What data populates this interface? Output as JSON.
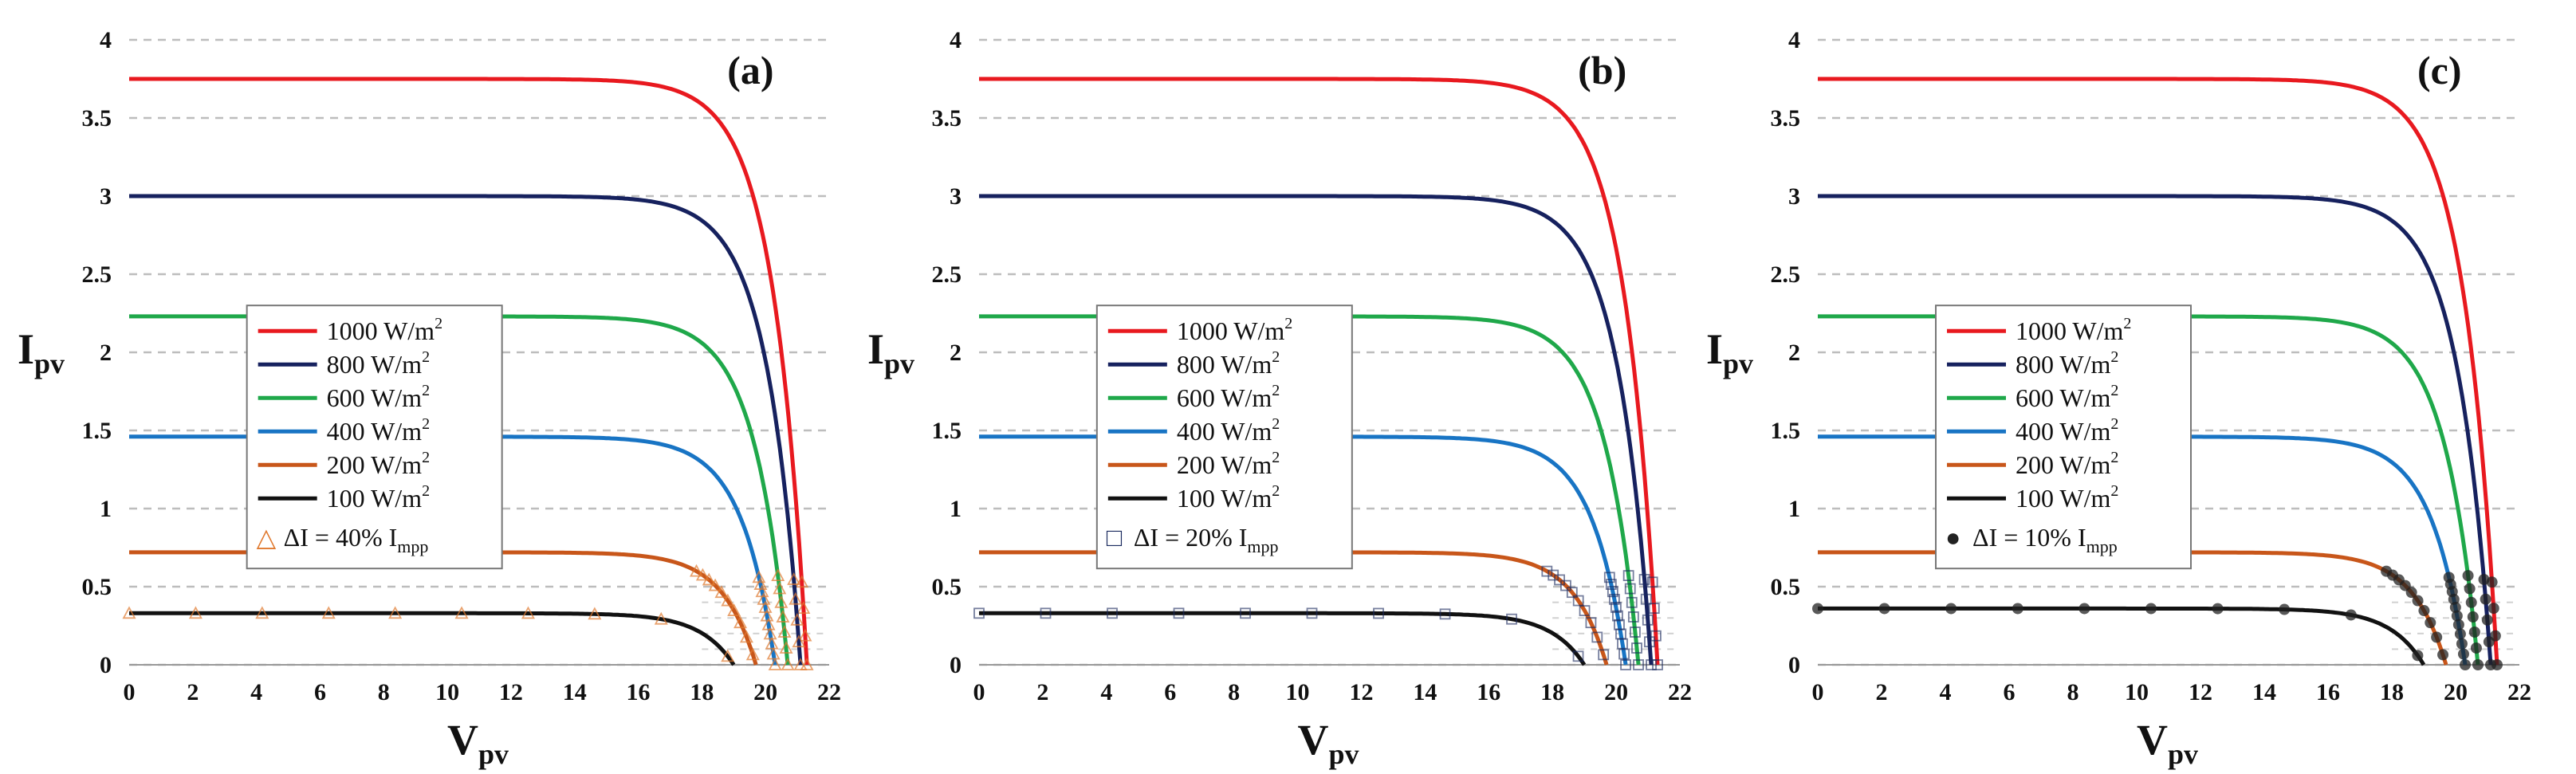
{
  "chart_data": [
    {
      "type": "line",
      "panel_label": "(a)",
      "xlabel_main": "V",
      "xlabel_sub": "pv",
      "ylabel_main": "I",
      "ylabel_sub": "pv",
      "xlim": [
        0,
        22
      ],
      "ylim": [
        0,
        4
      ],
      "xticks": [
        "0",
        "2",
        "4",
        "6",
        "8",
        "10",
        "12",
        "14",
        "16",
        "18",
        "20",
        "22"
      ],
      "yticks": [
        "0",
        "0.5",
        "1",
        "1.5",
        "2",
        "2.5",
        "3",
        "3.5",
        "4"
      ],
      "legend": {
        "entries": [
          {
            "label": "1000 W/m",
            "sup": "2"
          },
          {
            "label": "800 W/m",
            "sup": "2"
          },
          {
            "label": "600 W/m",
            "sup": "2"
          },
          {
            "label": "400 W/m",
            "sup": "2"
          },
          {
            "label": "200 W/m",
            "sup": "2"
          },
          {
            "label": "100 W/m",
            "sup": "2"
          }
        ],
        "marker_symbol": "△",
        "marker_text": "ΔI = 40% I",
        "marker_sub": "mpp"
      },
      "marker_shape": "triangle",
      "marker_color": "#e07a30",
      "series": [
        {
          "name": "1000 W/m2",
          "color": "#e8191f",
          "isc": 3.75,
          "voc": 21.3
        },
        {
          "name": "800 W/m2",
          "color": "#16215e",
          "isc": 3.0,
          "voc": 21.1
        },
        {
          "name": "600 W/m2",
          "color": "#1fa84a",
          "isc": 2.23,
          "voc": 20.7
        },
        {
          "name": "400 W/m2",
          "color": "#1874c4",
          "isc": 1.46,
          "voc": 20.3
        },
        {
          "name": "200 W/m2",
          "color": "#c8561a",
          "isc": 0.72,
          "voc": 19.7
        },
        {
          "name": "100 W/m2",
          "color": "#111111",
          "isc": 0.33,
          "voc": 19.0
        }
      ]
    },
    {
      "type": "line",
      "panel_label": "(b)",
      "xlabel_main": "V",
      "xlabel_sub": "pv",
      "ylabel_main": "I",
      "ylabel_sub": "pv",
      "xlim": [
        0,
        22
      ],
      "ylim": [
        0,
        4
      ],
      "xticks": [
        "0",
        "2",
        "4",
        "6",
        "8",
        "10",
        "12",
        "14",
        "16",
        "18",
        "20",
        "22"
      ],
      "yticks": [
        "0",
        "0.5",
        "1",
        "1.5",
        "2",
        "2.5",
        "3",
        "3.5",
        "4"
      ],
      "legend": {
        "entries": [
          {
            "label": "1000 W/m",
            "sup": "2"
          },
          {
            "label": "800 W/m",
            "sup": "2"
          },
          {
            "label": "600 W/m",
            "sup": "2"
          },
          {
            "label": "400 W/m",
            "sup": "2"
          },
          {
            "label": "200 W/m",
            "sup": "2"
          },
          {
            "label": "100 W/m",
            "sup": "2"
          }
        ],
        "marker_symbol": "□",
        "marker_text": "ΔI = 20% I",
        "marker_sub": "mpp"
      },
      "marker_shape": "square",
      "marker_color": "#1a2a5e",
      "series": [
        {
          "name": "1000 W/m2",
          "color": "#e8191f",
          "isc": 3.75,
          "voc": 21.3
        },
        {
          "name": "800 W/m2",
          "color": "#16215e",
          "isc": 3.0,
          "voc": 21.1
        },
        {
          "name": "600 W/m2",
          "color": "#1fa84a",
          "isc": 2.23,
          "voc": 20.7
        },
        {
          "name": "400 W/m2",
          "color": "#1874c4",
          "isc": 1.46,
          "voc": 20.3
        },
        {
          "name": "200 W/m2",
          "color": "#c8561a",
          "isc": 0.72,
          "voc": 19.7
        },
        {
          "name": "100 W/m2",
          "color": "#111111",
          "isc": 0.33,
          "voc": 19.0
        }
      ]
    },
    {
      "type": "line",
      "panel_label": "(c)",
      "xlabel_main": "V",
      "xlabel_sub": "pv",
      "ylabel_main": "I",
      "ylabel_sub": "pv",
      "xlim": [
        0,
        22
      ],
      "ylim": [
        0,
        4
      ],
      "xticks": [
        "0",
        "2",
        "4",
        "6",
        "8",
        "10",
        "12",
        "14",
        "16",
        "18",
        "20",
        "22"
      ],
      "yticks": [
        "0",
        "0.5",
        "1",
        "1.5",
        "2",
        "2.5",
        "3",
        "3.5",
        "4"
      ],
      "legend": {
        "entries": [
          {
            "label": "1000 W/m",
            "sup": "2"
          },
          {
            "label": "800 W/m",
            "sup": "2"
          },
          {
            "label": "600 W/m",
            "sup": "2"
          },
          {
            "label": "400 W/m",
            "sup": "2"
          },
          {
            "label": "200 W/m",
            "sup": "2"
          },
          {
            "label": "100 W/m",
            "sup": "2"
          }
        ],
        "marker_symbol": "●",
        "marker_text": "ΔI = 10% I",
        "marker_sub": "mpp"
      },
      "marker_shape": "circle",
      "marker_color": "#222222",
      "series": [
        {
          "name": "1000 W/m2",
          "color": "#e8191f",
          "isc": 3.75,
          "voc": 21.3
        },
        {
          "name": "800 W/m2",
          "color": "#16215e",
          "isc": 3.0,
          "voc": 21.1
        },
        {
          "name": "600 W/m2",
          "color": "#1fa84a",
          "isc": 2.23,
          "voc": 20.7
        },
        {
          "name": "400 W/m2",
          "color": "#1874c4",
          "isc": 1.46,
          "voc": 20.3
        },
        {
          "name": "200 W/m2",
          "color": "#c8561a",
          "isc": 0.72,
          "voc": 19.7
        },
        {
          "name": "100 W/m2",
          "color": "#111111",
          "isc": 0.36,
          "voc": 19.0
        }
      ]
    }
  ]
}
